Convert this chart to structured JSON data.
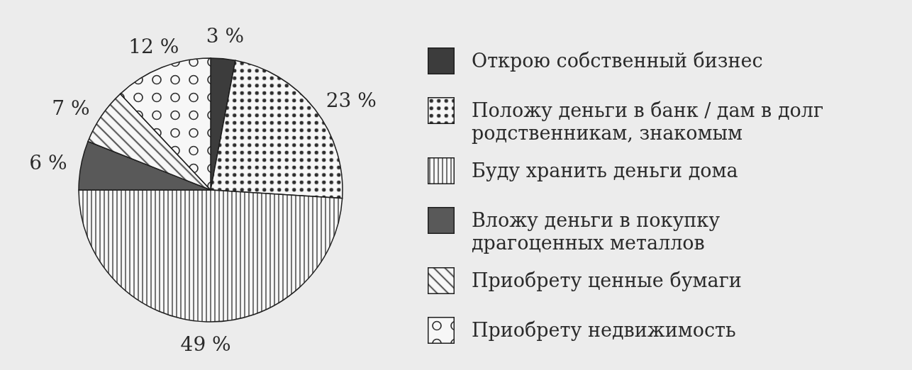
{
  "chart_data": {
    "type": "pie",
    "categories": [
      "Открою собственный бизнес",
      "Положу деньги в банк / дам в долг родственникам, знакомым",
      "Буду хранить деньги дома",
      "Вложу деньги в покупку драгоценных металлов",
      "Приобрету ценные бумаги",
      "Приобрету недвижимость"
    ],
    "values": [
      3,
      23,
      49,
      6,
      7,
      12
    ],
    "colors": [
      "#3c3c3c",
      "#2e2e2e",
      "#2e2e2e",
      "#595959",
      "#2e2e2e",
      "#2e2e2e"
    ],
    "value_labels": [
      "3 %",
      "23 %",
      "49 %",
      "6 %",
      "7 %",
      "12 %"
    ],
    "legend": "right"
  }
}
